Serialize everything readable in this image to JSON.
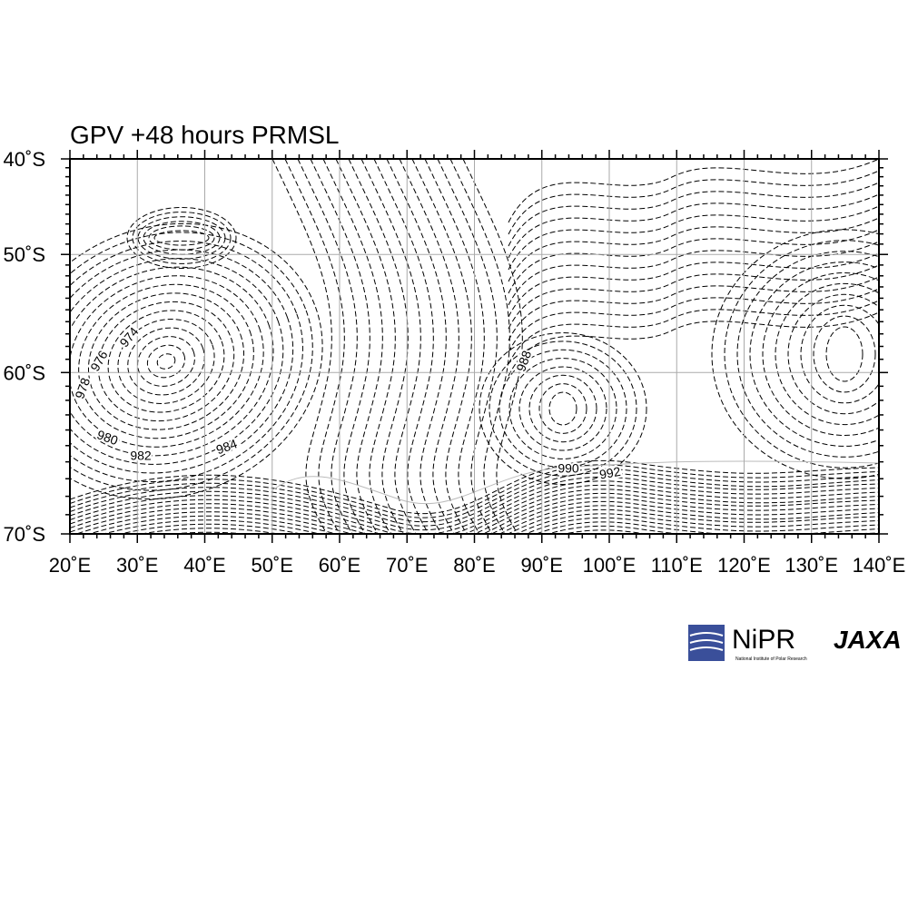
{
  "map": {
    "title": "GPV +48 hours PRMSL",
    "lat_labels": [
      "40˚S",
      "50˚S",
      "60˚S",
      "70˚S"
    ],
    "lon_labels": [
      "20˚E",
      "30˚E",
      "40˚E",
      "50˚E",
      "60˚E",
      "70˚E",
      "80˚E",
      "90˚E",
      "100˚E",
      "110˚E",
      "120˚E",
      "130˚E",
      "140˚E"
    ],
    "contour_labels": [
      "974",
      "976",
      "978",
      "980",
      "982",
      "984",
      "988",
      "990",
      "992"
    ],
    "logos": {
      "nipr": "NiPR",
      "nipr_full": "National Institute of Polar Research",
      "jaxa": "JAXA"
    }
  }
}
